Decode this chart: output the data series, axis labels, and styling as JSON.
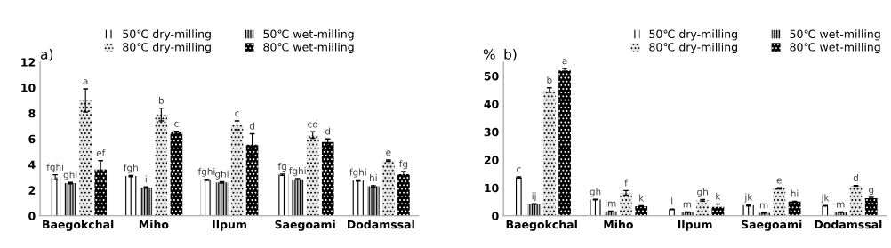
{
  "chart_data": [
    {
      "type": "bar",
      "title": "a)",
      "categories": [
        "Baegokchal",
        "Miho",
        "Ilpum",
        "Saegoami",
        "Dodamssal"
      ],
      "ylim": [
        0,
        12
      ],
      "yticks": [
        0,
        2,
        4,
        6,
        8,
        10,
        12
      ],
      "grid": false,
      "legend": "top",
      "series": [
        {
          "name": "50℃ dry-milling",
          "color": "#ffffff",
          "values": [
            3.0,
            3.1,
            2.8,
            3.2,
            2.75
          ],
          "errors": [
            0.2,
            0.05,
            0.05,
            0.05,
            0.05
          ],
          "value_labels": [
            "fghi",
            "fgh",
            "fghi",
            "fg",
            "fghi"
          ]
        },
        {
          "name": "50℃ wet-milling",
          "color": "#bfbfbf",
          "values": [
            2.55,
            2.2,
            2.6,
            2.85,
            2.3
          ],
          "errors": [
            0.05,
            0.05,
            0.05,
            0.05,
            0.05
          ],
          "value_labels": [
            "ghi",
            "i",
            "ghi",
            "fghi",
            "hi"
          ]
        },
        {
          "name": "80℃ dry-milling",
          "color": "#e6e6e6",
          "values": [
            9.0,
            7.9,
            7.05,
            6.3,
            4.3
          ],
          "errors": [
            0.9,
            0.5,
            0.35,
            0.25,
            0.05
          ],
          "value_labels": [
            "a",
            "b",
            "c",
            "cd",
            "e"
          ]
        },
        {
          "name": "80℃ wet-milling",
          "color": "#000000",
          "values": [
            3.6,
            6.5,
            5.55,
            5.75,
            3.25
          ],
          "errors": [
            0.7,
            0.1,
            0.85,
            0.25,
            0.2
          ],
          "value_labels": [
            "ef",
            "c",
            "d",
            "d",
            "fg"
          ]
        }
      ]
    },
    {
      "type": "bar",
      "title": "b)",
      "ylabel": "%",
      "categories": [
        "Baegokchal",
        "Miho",
        "Ilpum",
        "Saegoami",
        "Dodamssal"
      ],
      "ylim": [
        0,
        55
      ],
      "yticks": [
        0,
        10,
        20,
        30,
        40,
        50
      ],
      "grid": false,
      "legend": "top right",
      "series": [
        {
          "name": "50℃ dry-milling",
          "color": "#ffffff",
          "values": [
            13.7,
            5.8,
            2.3,
            3.7,
            3.6
          ],
          "errors": [
            0.2,
            0.1,
            0.1,
            0.2,
            0.1
          ],
          "value_labels": [
            "c",
            "gh",
            "l",
            "jk",
            "jk"
          ]
        },
        {
          "name": "50℃ wet-milling",
          "color": "#bfbfbf",
          "values": [
            4.2,
            1.6,
            1.3,
            1.0,
            1.3
          ],
          "errors": [
            0.1,
            0.1,
            0.1,
            0.1,
            0.1
          ],
          "value_labels": [
            "ij",
            "lm",
            "m",
            "m",
            "m"
          ]
        },
        {
          "name": "80℃ dry-milling",
          "color": "#e6e6e6",
          "values": [
            45.0,
            8.2,
            5.5,
            9.8,
            10.7
          ],
          "errors": [
            0.8,
            0.8,
            0.3,
            0.2,
            0.1
          ],
          "value_labels": [
            "b",
            "f",
            "gh",
            "e",
            "d"
          ]
        },
        {
          "name": "80℃ wet-milling",
          "color": "#000000",
          "values": [
            52.0,
            3.4,
            3.2,
            5.1,
            6.3
          ],
          "errors": [
            0.7,
            0.2,
            1.0,
            0.1,
            0.3
          ],
          "value_labels": [
            "a",
            "k",
            "k",
            "hi",
            "g"
          ]
        }
      ]
    }
  ]
}
